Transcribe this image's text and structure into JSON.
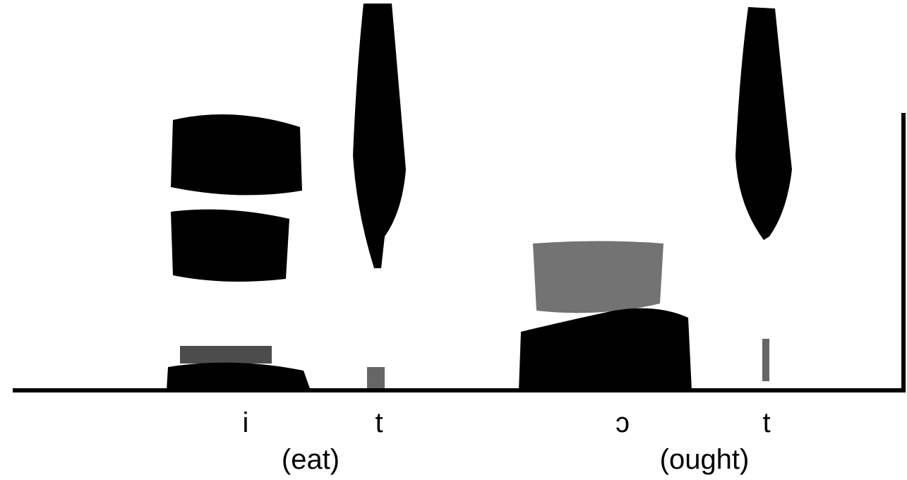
{
  "words": [
    {
      "phones": [
        "i",
        "t"
      ],
      "gloss": "(eat)"
    },
    {
      "phones": [
        "ɔ",
        "t"
      ],
      "gloss": "(ought)"
    }
  ]
}
